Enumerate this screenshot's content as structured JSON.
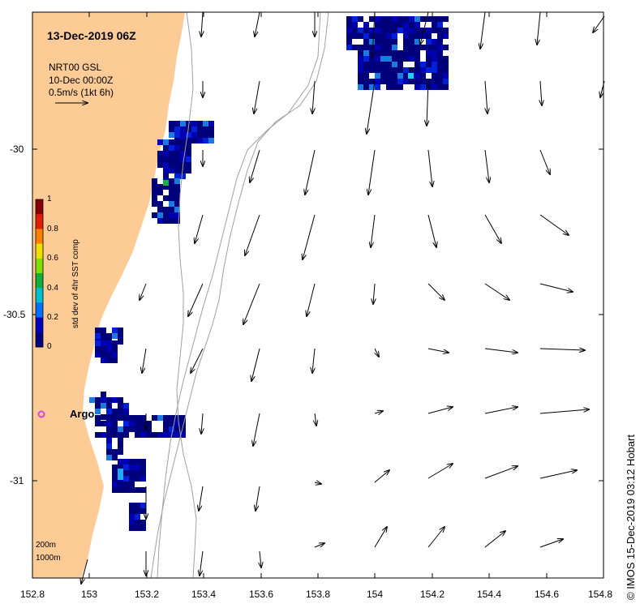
{
  "map": {
    "date_title": "13-Dec-2019 06Z",
    "product": "NRT00 GSL",
    "product_date": "10-Dec 00:00Z",
    "scale_label": "0.5m/s (1kt 6h)",
    "argo_label": "Argo",
    "contour_labels": [
      "200m",
      "1000m"
    ],
    "credit": "© IMOS 15-Dec-2019 03:12 Hobart",
    "land_color": "#fccb96",
    "argo_color": "#e040e0",
    "lon_range": [
      152.8,
      154.8
    ],
    "lat_range": [
      -31.3,
      -29.6
    ]
  },
  "axes": {
    "x_ticks": [
      "152.8",
      "153",
      "153.2",
      "153.4",
      "153.6",
      "153.8",
      "154",
      "154.2",
      "154.4",
      "154.6",
      "154.8"
    ],
    "y_ticks": [
      "-30",
      "-30.5",
      "-31"
    ]
  },
  "colorbar": {
    "title": "std dev of 4hr SST comp",
    "ticks": [
      "1",
      "0.8",
      "0.6",
      "0.4",
      "0.2",
      "0"
    ],
    "colors": [
      "#8b0000",
      "#e02000",
      "#ff8000",
      "#f0e000",
      "#80e000",
      "#10b040",
      "#00c0d0",
      "#0070ff",
      "#0000c0",
      "#000080"
    ]
  }
}
